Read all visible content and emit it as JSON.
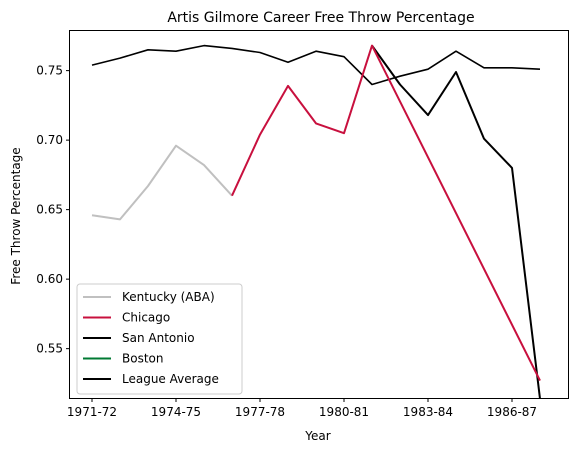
{
  "chart_data": {
    "type": "line",
    "title": "Artis Gilmore Career Free Throw Percentage",
    "xlabel": "Year",
    "ylabel": "Free Throw Percentage",
    "x_categories": [
      "1971-72",
      "1972-73",
      "1973-74",
      "1974-75",
      "1975-76",
      "1976-77",
      "1977-78",
      "1978-79",
      "1979-80",
      "1980-81",
      "1981-82",
      "1982-83",
      "1983-84",
      "1984-85",
      "1985-86",
      "1986-87",
      "1987-88"
    ],
    "x_tick_labels": [
      "1971-72",
      "1974-75",
      "1977-78",
      "1980-81",
      "1983-84",
      "1986-87"
    ],
    "ylim": [
      0.5145,
      0.7785
    ],
    "y_ticks": [
      0.55,
      0.6,
      0.65,
      0.7,
      0.75
    ],
    "grid": false,
    "legend_position": "lower-left",
    "series": [
      {
        "name": "Kentucky (ABA)",
        "color": "#c0c0c0",
        "width": 2,
        "x": [
          "1971-72",
          "1972-73",
          "1973-74",
          "1974-75",
          "1975-76",
          "1976-77"
        ],
        "values": [
          0.646,
          0.643,
          0.667,
          0.696,
          0.682,
          0.66
        ]
      },
      {
        "name": "Chicago",
        "color": "#c8103e",
        "width": 2,
        "x": [
          "1976-77",
          "1977-78",
          "1978-79",
          "1979-80",
          "1980-81",
          "1981-82",
          "1987-88"
        ],
        "values": [
          0.66,
          0.704,
          0.739,
          0.712,
          0.705,
          0.768,
          0.527
        ]
      },
      {
        "name": "San Antonio",
        "color": "#000000",
        "width": 2,
        "x": [
          "1981-82",
          "1982-83",
          "1983-84",
          "1984-85",
          "1985-86",
          "1986-87",
          "1987-88"
        ],
        "values": [
          0.768,
          0.74,
          0.718,
          0.749,
          0.701,
          0.68,
          0.514
        ]
      },
      {
        "name": "Boston",
        "color": "#007a33",
        "width": 2,
        "x": [],
        "values": []
      },
      {
        "name": "League Average",
        "color": "#000000",
        "width": 1.6,
        "x": [
          "1971-72",
          "1972-73",
          "1973-74",
          "1974-75",
          "1975-76",
          "1976-77",
          "1977-78",
          "1978-79",
          "1979-80",
          "1980-81",
          "1981-82",
          "1982-83",
          "1983-84",
          "1984-85",
          "1985-86",
          "1986-87",
          "1987-88"
        ],
        "values": [
          0.754,
          0.759,
          0.765,
          0.764,
          0.768,
          0.766,
          0.763,
          0.756,
          0.764,
          0.76,
          0.74,
          0.746,
          0.751,
          0.764,
          0.752,
          0.752,
          0.751
        ]
      }
    ]
  }
}
